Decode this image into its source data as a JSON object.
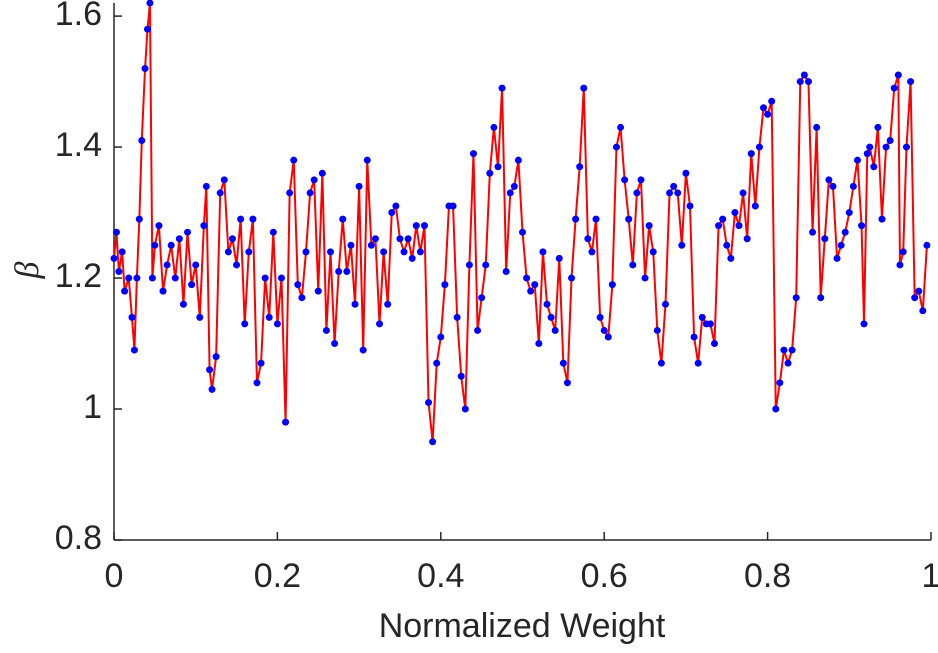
{
  "chart_data": {
    "type": "line",
    "xlabel": "Normalized Weight",
    "ylabel": "β",
    "xlim": [
      0,
      1
    ],
    "ylim": [
      0.8,
      1.62
    ],
    "xticks": [
      0,
      0.2,
      0.4,
      0.6,
      0.8,
      1
    ],
    "yticks": [
      0.8,
      1,
      1.2,
      1.4,
      1.6
    ],
    "color": "#ff0000",
    "marker_color": "#0000ff",
    "x": [
      0,
      0.003,
      0.006,
      0.01,
      0.013,
      0.018,
      0.022,
      0.025,
      0.028,
      0.031,
      0.034,
      0.038,
      0.041,
      0.044,
      0.047,
      0.05,
      0.055,
      0.06,
      0.065,
      0.07,
      0.075,
      0.08,
      0.085,
      0.09,
      0.095,
      0.1,
      0.105,
      0.11,
      0.113,
      0.117,
      0.12,
      0.125,
      0.13,
      0.135,
      0.14,
      0.145,
      0.15,
      0.155,
      0.16,
      0.165,
      0.17,
      0.175,
      0.18,
      0.185,
      0.19,
      0.195,
      0.2,
      0.205,
      0.21,
      0.215,
      0.22,
      0.225,
      0.23,
      0.235,
      0.24,
      0.245,
      0.25,
      0.255,
      0.26,
      0.265,
      0.27,
      0.275,
      0.28,
      0.285,
      0.29,
      0.295,
      0.3,
      0.305,
      0.31,
      0.315,
      0.32,
      0.325,
      0.33,
      0.335,
      0.34,
      0.345,
      0.35,
      0.355,
      0.36,
      0.365,
      0.37,
      0.375,
      0.38,
      0.385,
      0.39,
      0.395,
      0.4,
      0.405,
      0.41,
      0.415,
      0.42,
      0.425,
      0.43,
      0.435,
      0.44,
      0.445,
      0.45,
      0.455,
      0.46,
      0.465,
      0.47,
      0.475,
      0.48,
      0.485,
      0.49,
      0.495,
      0.5,
      0.505,
      0.51,
      0.515,
      0.52,
      0.525,
      0.53,
      0.535,
      0.54,
      0.545,
      0.55,
      0.555,
      0.56,
      0.565,
      0.57,
      0.575,
      0.58,
      0.585,
      0.59,
      0.595,
      0.6,
      0.605,
      0.61,
      0.615,
      0.62,
      0.625,
      0.63,
      0.635,
      0.64,
      0.645,
      0.65,
      0.655,
      0.66,
      0.665,
      0.67,
      0.675,
      0.68,
      0.685,
      0.69,
      0.695,
      0.7,
      0.705,
      0.71,
      0.715,
      0.72,
      0.725,
      0.73,
      0.735,
      0.74,
      0.745,
      0.75,
      0.755,
      0.76,
      0.765,
      0.77,
      0.775,
      0.78,
      0.785,
      0.79,
      0.795,
      0.8,
      0.805,
      0.81,
      0.815,
      0.82,
      0.825,
      0.83,
      0.835,
      0.84,
      0.845,
      0.85,
      0.855,
      0.86,
      0.865,
      0.87,
      0.875,
      0.88,
      0.885,
      0.89,
      0.895,
      0.9,
      0.905,
      0.91,
      0.915,
      0.918,
      0.922,
      0.925,
      0.93,
      0.935,
      0.94,
      0.945,
      0.95,
      0.955,
      0.96,
      0.962,
      0.966,
      0.97,
      0.975,
      0.98,
      0.985,
      0.99,
      0.995
    ],
    "values": [
      1.23,
      1.27,
      1.21,
      1.24,
      1.18,
      1.2,
      1.14,
      1.09,
      1.2,
      1.29,
      1.41,
      1.52,
      1.58,
      1.62,
      1.2,
      1.25,
      1.28,
      1.18,
      1.22,
      1.25,
      1.2,
      1.26,
      1.16,
      1.27,
      1.19,
      1.22,
      1.14,
      1.28,
      1.34,
      1.06,
      1.03,
      1.08,
      1.33,
      1.35,
      1.24,
      1.26,
      1.22,
      1.29,
      1.13,
      1.24,
      1.29,
      1.04,
      1.07,
      1.2,
      1.14,
      1.27,
      1.13,
      1.2,
      0.98,
      1.33,
      1.38,
      1.19,
      1.17,
      1.24,
      1.33,
      1.35,
      1.18,
      1.36,
      1.12,
      1.24,
      1.1,
      1.21,
      1.29,
      1.21,
      1.25,
      1.16,
      1.34,
      1.09,
      1.38,
      1.25,
      1.26,
      1.13,
      1.24,
      1.16,
      1.3,
      1.31,
      1.26,
      1.24,
      1.26,
      1.23,
      1.28,
      1.24,
      1.28,
      1.01,
      0.95,
      1.07,
      1.11,
      1.19,
      1.31,
      1.31,
      1.14,
      1.05,
      1.0,
      1.22,
      1.39,
      1.12,
      1.17,
      1.22,
      1.36,
      1.43,
      1.37,
      1.49,
      1.21,
      1.33,
      1.34,
      1.38,
      1.27,
      1.2,
      1.18,
      1.19,
      1.1,
      1.24,
      1.16,
      1.14,
      1.12,
      1.23,
      1.07,
      1.04,
      1.2,
      1.29,
      1.37,
      1.49,
      1.26,
      1.24,
      1.29,
      1.14,
      1.12,
      1.11,
      1.19,
      1.4,
      1.43,
      1.35,
      1.29,
      1.22,
      1.33,
      1.35,
      1.2,
      1.28,
      1.24,
      1.12,
      1.07,
      1.16,
      1.33,
      1.34,
      1.33,
      1.25,
      1.36,
      1.31,
      1.11,
      1.07,
      1.14,
      1.13,
      1.13,
      1.1,
      1.28,
      1.29,
      1.25,
      1.23,
      1.3,
      1.28,
      1.33,
      1.26,
      1.39,
      1.31,
      1.4,
      1.46,
      1.45,
      1.47,
      1.0,
      1.04,
      1.09,
      1.07,
      1.09,
      1.17,
      1.5,
      1.51,
      1.5,
      1.27,
      1.43,
      1.17,
      1.26,
      1.35,
      1.34,
      1.23,
      1.25,
      1.27,
      1.3,
      1.34,
      1.38,
      1.28,
      1.13,
      1.39,
      1.4,
      1.37,
      1.43,
      1.29,
      1.4,
      1.41,
      1.49,
      1.51,
      1.22,
      1.24,
      1.4,
      1.5,
      1.17,
      1.18,
      1.15,
      1.25
    ]
  }
}
